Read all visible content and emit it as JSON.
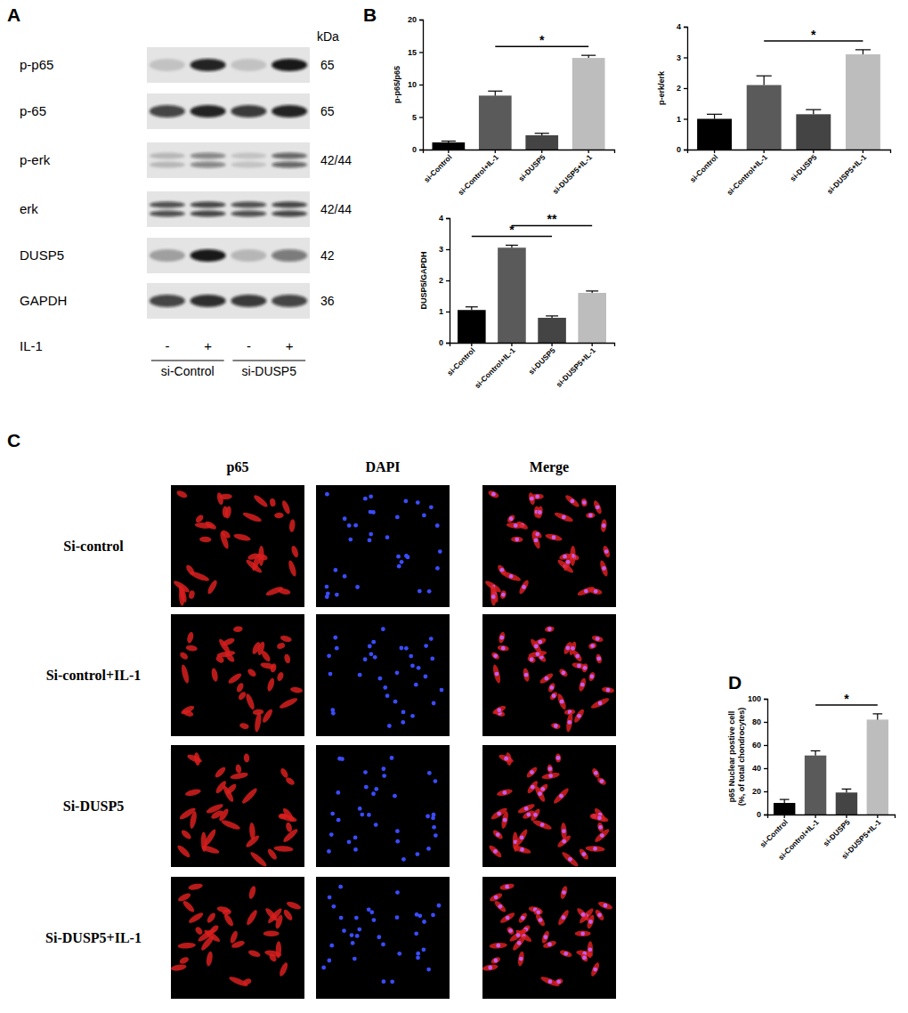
{
  "panels": [
    "A",
    "B",
    "C",
    "D"
  ],
  "blot": {
    "kda_header": "kDa",
    "rows": [
      {
        "label": "p-p65",
        "kda": "65",
        "bands": [
          0.15,
          0.9,
          0.15,
          0.95
        ],
        "doublet": false
      },
      {
        "label": "p-65",
        "kda": "65",
        "bands": [
          0.75,
          0.9,
          0.8,
          0.9
        ],
        "doublet": false
      },
      {
        "label": "p-erk",
        "kda": "42/44",
        "bands": [
          0.2,
          0.45,
          0.15,
          0.6
        ],
        "doublet": true
      },
      {
        "label": "erk",
        "kda": "42/44",
        "bands": [
          0.7,
          0.75,
          0.7,
          0.75
        ],
        "doublet": true
      },
      {
        "label": "DUSP5",
        "kda": "42",
        "bands": [
          0.3,
          0.95,
          0.2,
          0.5
        ],
        "doublet": false
      },
      {
        "label": "GAPDH",
        "kda": "36",
        "bands": [
          0.75,
          0.85,
          0.8,
          0.75
        ],
        "doublet": false
      }
    ],
    "treatment": {
      "label": "IL-1",
      "signs": [
        "-",
        "+",
        "-",
        "+"
      ]
    },
    "groups": [
      "si-Control",
      "si-DUSP5"
    ]
  },
  "microscopy": {
    "columns": [
      "p65",
      "DAPI",
      "Merge"
    ],
    "rows": [
      "Si-control",
      "Si-control+IL-1",
      "Si-DUSP5",
      "Si-DUSP5+IL-1"
    ]
  },
  "chart_data": [
    {
      "type": "bar",
      "y_label": [
        "p-p65/p65"
      ],
      "categories": [
        "si-Control",
        "si-Control+IL-1",
        "si-DUSP5",
        "si-DUSP5+IL-1"
      ],
      "values": [
        1.1,
        8.3,
        2.2,
        14.1
      ],
      "errors": [
        0.2,
        0.7,
        0.3,
        0.4
      ],
      "colors": [
        "#000000",
        "#5a5a5a",
        "#444444",
        "#bdbdbd"
      ],
      "ylim": [
        0,
        20
      ],
      "yticks": [
        0,
        5,
        10,
        15,
        20
      ],
      "significance": [
        {
          "from": 1,
          "to": 3,
          "label": "*"
        }
      ]
    },
    {
      "type": "bar",
      "y_label": [
        "p-erk/erk"
      ],
      "categories": [
        "si-Control",
        "si-Control+IL-1",
        "si-DUSP5",
        "si-DUSP5+IL-1"
      ],
      "values": [
        1.0,
        2.1,
        1.15,
        3.1
      ],
      "errors": [
        0.15,
        0.3,
        0.15,
        0.15
      ],
      "colors": [
        "#000000",
        "#5a5a5a",
        "#444444",
        "#bdbdbd"
      ],
      "ylim": [
        0,
        4
      ],
      "yticks": [
        0,
        1,
        2,
        3,
        4
      ],
      "significance": [
        {
          "from": 1,
          "to": 3,
          "label": "*"
        }
      ]
    },
    {
      "type": "bar",
      "y_label": [
        "DUSP5/GAPDH"
      ],
      "categories": [
        "si-Control",
        "si-Control+IL-1",
        "si-DUSP5",
        "si-DUSP5+IL-1"
      ],
      "values": [
        1.05,
        3.05,
        0.8,
        1.6
      ],
      "errors": [
        0.1,
        0.08,
        0.06,
        0.06
      ],
      "colors": [
        "#000000",
        "#5a5a5a",
        "#444444",
        "#bdbdbd"
      ],
      "ylim": [
        0,
        4
      ],
      "yticks": [
        0,
        1,
        2,
        3,
        4
      ],
      "significance": [
        {
          "from": 0,
          "to": 2,
          "label": "*"
        },
        {
          "from": 1,
          "to": 3,
          "label": "**"
        }
      ]
    },
    {
      "type": "bar",
      "y_label": [
        "p65 Nuclear postive cell",
        "(%, of total chondrocytes)"
      ],
      "categories": [
        "si-Control",
        "si-Control+IL-1",
        "si-DUSP5",
        "si-DUSP5+IL-1"
      ],
      "values": [
        10,
        51,
        19,
        82
      ],
      "errors": [
        3,
        4,
        3,
        5
      ],
      "colors": [
        "#000000",
        "#5a5a5a",
        "#444444",
        "#bdbdbd"
      ],
      "ylim": [
        0,
        100
      ],
      "yticks": [
        0,
        20,
        40,
        60,
        80,
        100
      ],
      "significance": [
        {
          "from": 1,
          "to": 3,
          "label": "*"
        }
      ]
    }
  ]
}
